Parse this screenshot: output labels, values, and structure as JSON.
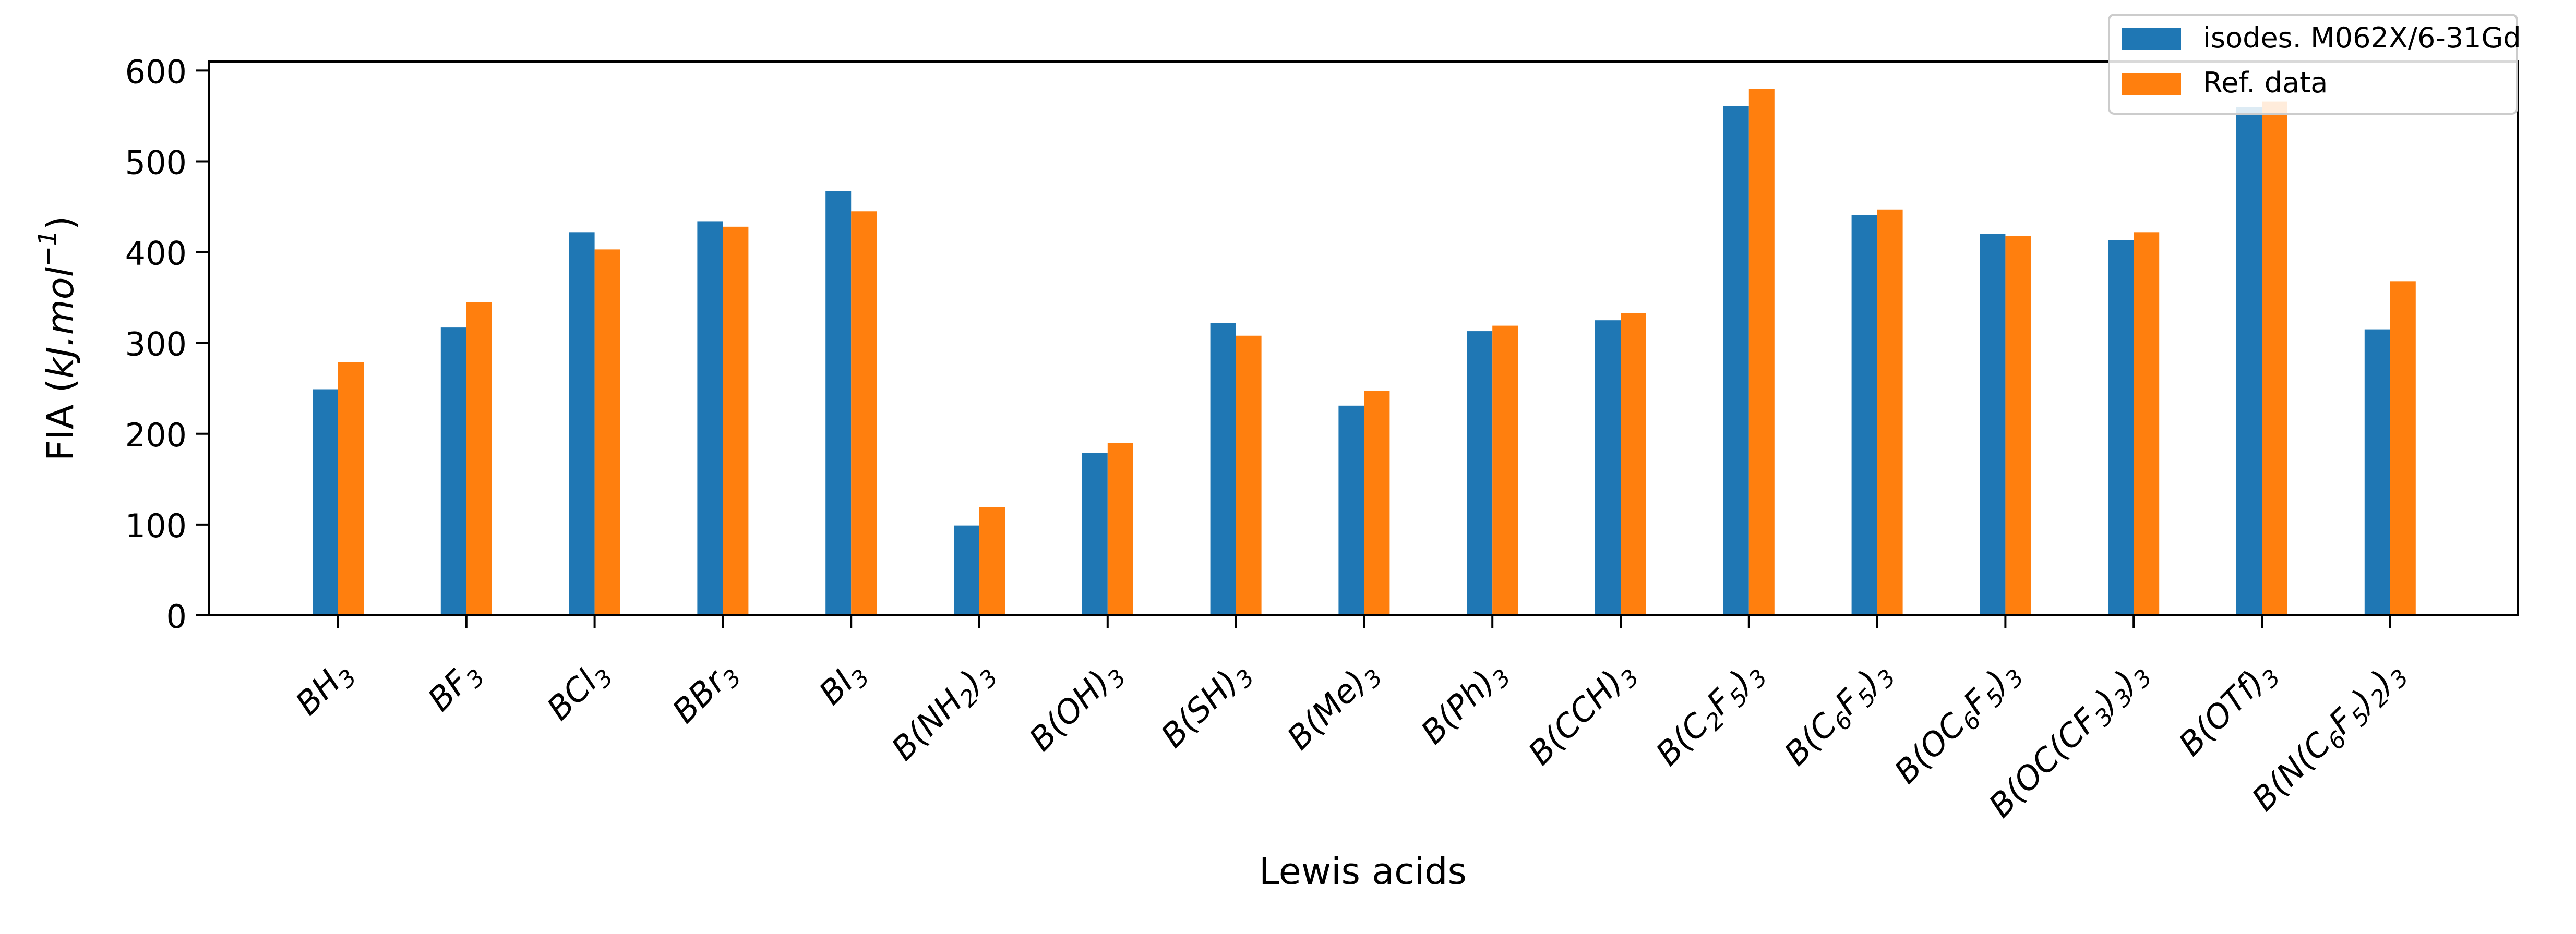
{
  "chart_data": {
    "type": "bar",
    "title": "",
    "xlabel": "Lewis acids",
    "ylabel": "FIA (kJ.mol^-1)",
    "ylabel_parts": {
      "prefix": "FIA (",
      "unit_main": "kJ.mol",
      "exponent": "−1",
      "suffix": ")"
    },
    "ylim": [
      0,
      610
    ],
    "yticks": [
      0,
      100,
      200,
      300,
      400,
      500,
      600
    ],
    "ytick_labels": [
      "0",
      "100",
      "200",
      "300",
      "400",
      "500",
      "600"
    ],
    "legend_position": "top-right",
    "grid": false,
    "categories": [
      "BH3",
      "BF3",
      "BCl3",
      "BBr3",
      "BI3",
      "B(NH2)3",
      "B(OH)3",
      "B(SH)3",
      "B(Me)3",
      "B(Ph)3",
      "B(CCH)3",
      "B(C2F5)3",
      "B(C6F5)3",
      "B(OC6F5)3",
      "B(OC(CF3)3)3",
      "B(OTf)3",
      "B(N(C6F5)2)3"
    ],
    "category_labels": [
      [
        {
          "t": "BH"
        },
        {
          "t": "3",
          "sub": true
        }
      ],
      [
        {
          "t": "BF"
        },
        {
          "t": "3",
          "sub": true
        }
      ],
      [
        {
          "t": "BCl"
        },
        {
          "t": "3",
          "sub": true
        }
      ],
      [
        {
          "t": "BBr"
        },
        {
          "t": "3",
          "sub": true
        }
      ],
      [
        {
          "t": "BI"
        },
        {
          "t": "3",
          "sub": true
        }
      ],
      [
        {
          "t": "B(NH"
        },
        {
          "t": "2",
          "sub": true
        },
        {
          "t": ")"
        },
        {
          "t": "3",
          "sub": true
        }
      ],
      [
        {
          "t": "B(OH)"
        },
        {
          "t": "3",
          "sub": true
        }
      ],
      [
        {
          "t": "B(SH)"
        },
        {
          "t": "3",
          "sub": true
        }
      ],
      [
        {
          "t": "B(Me)"
        },
        {
          "t": "3",
          "sub": true
        }
      ],
      [
        {
          "t": "B(Ph)"
        },
        {
          "t": "3",
          "sub": true
        }
      ],
      [
        {
          "t": "B(CCH)"
        },
        {
          "t": "3",
          "sub": true
        }
      ],
      [
        {
          "t": "B(C"
        },
        {
          "t": "2",
          "sub": true
        },
        {
          "t": "F"
        },
        {
          "t": "5",
          "sub": true
        },
        {
          "t": ")"
        },
        {
          "t": "3",
          "sub": true
        }
      ],
      [
        {
          "t": "B(C"
        },
        {
          "t": "6",
          "sub": true
        },
        {
          "t": "F"
        },
        {
          "t": "5",
          "sub": true
        },
        {
          "t": ")"
        },
        {
          "t": "3",
          "sub": true
        }
      ],
      [
        {
          "t": "B(OC"
        },
        {
          "t": "6",
          "sub": true
        },
        {
          "t": "F"
        },
        {
          "t": "5",
          "sub": true
        },
        {
          "t": ")"
        },
        {
          "t": "3",
          "sub": true
        }
      ],
      [
        {
          "t": "B(OC(CF"
        },
        {
          "t": "3",
          "sub": true
        },
        {
          "t": ")"
        },
        {
          "t": "3",
          "sub": true
        },
        {
          "t": ")"
        },
        {
          "t": "3",
          "sub": true
        }
      ],
      [
        {
          "t": "B(OTf)"
        },
        {
          "t": "3",
          "sub": true
        }
      ],
      [
        {
          "t": "B(N(C"
        },
        {
          "t": "6",
          "sub": true
        },
        {
          "t": "F"
        },
        {
          "t": "5",
          "sub": true
        },
        {
          "t": ")"
        },
        {
          "t": "2",
          "sub": true
        },
        {
          "t": ")"
        },
        {
          "t": "3",
          "sub": true
        }
      ]
    ],
    "series": [
      {
        "name": "isodes. M062X/6-31Gd",
        "color": "#1f77b4",
        "values": [
          249,
          317,
          422,
          434,
          467,
          99,
          179,
          322,
          231,
          313,
          325,
          561,
          441,
          420,
          413,
          560,
          315
        ]
      },
      {
        "name": "Ref. data",
        "color": "#ff7f0e",
        "values": [
          279,
          345,
          403,
          428,
          445,
          119,
          190,
          308,
          247,
          319,
          333,
          580,
          447,
          418,
          422,
          566,
          368
        ]
      }
    ]
  }
}
